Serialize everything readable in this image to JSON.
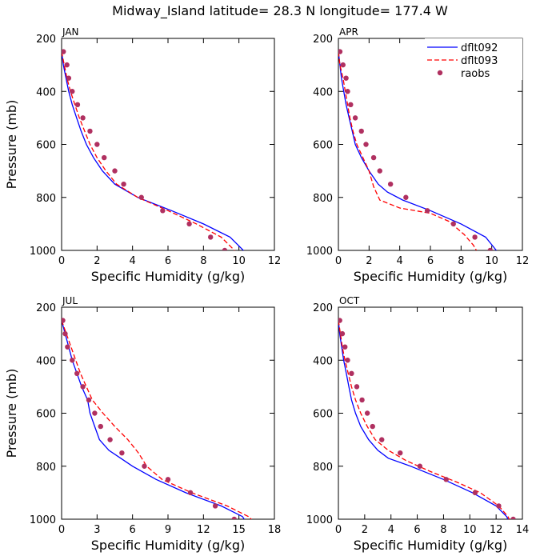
{
  "figure": {
    "title": "Midway_Island  latitude= 28.3 N longitude= 177.4 W"
  },
  "colors": {
    "dflt092": "#0000ff",
    "dflt093": "#ff0000",
    "raobs": "#b03060",
    "axis": "#000000"
  },
  "legend": {
    "placement": "top-right of APR panel",
    "entries": [
      {
        "label": "dflt092",
        "style": "solid-line"
      },
      {
        "label": "dflt093",
        "style": "dashed-line"
      },
      {
        "label": "raobs",
        "style": "dot"
      }
    ]
  },
  "chart_data": [
    {
      "type": "line",
      "panel_label": "JAN",
      "xlabel": "Specific Humidity (g/kg)",
      "ylabel": "Pressure (mb)",
      "xlim": [
        0,
        12
      ],
      "xticks": [
        0,
        2,
        4,
        6,
        8,
        10,
        12
      ],
      "ylim": [
        1000,
        200
      ],
      "yticks": [
        200,
        400,
        600,
        800,
        1000
      ],
      "grid": false,
      "series": [
        {
          "name": "dflt092",
          "style": "solid",
          "points": [
            [
              0.0,
              250
            ],
            [
              0.1,
              300
            ],
            [
              0.25,
              350
            ],
            [
              0.4,
              400
            ],
            [
              0.6,
              450
            ],
            [
              0.85,
              500
            ],
            [
              1.1,
              550
            ],
            [
              1.4,
              600
            ],
            [
              1.8,
              650
            ],
            [
              2.3,
              700
            ],
            [
              3.0,
              750
            ],
            [
              4.3,
              800
            ],
            [
              6.2,
              850
            ],
            [
              8.0,
              900
            ],
            [
              9.5,
              950
            ],
            [
              10.1,
              990
            ],
            [
              10.4,
              1010
            ]
          ]
        },
        {
          "name": "dflt093",
          "style": "dashed",
          "points": [
            [
              0.0,
              250
            ],
            [
              0.15,
              300
            ],
            [
              0.3,
              350
            ],
            [
              0.5,
              400
            ],
            [
              0.75,
              450
            ],
            [
              1.0,
              500
            ],
            [
              1.3,
              550
            ],
            [
              1.6,
              600
            ],
            [
              2.0,
              650
            ],
            [
              2.5,
              700
            ],
            [
              3.1,
              750
            ],
            [
              4.3,
              800
            ],
            [
              6.0,
              850
            ],
            [
              7.6,
              900
            ],
            [
              9.0,
              950
            ],
            [
              9.6,
              990
            ],
            [
              9.9,
              1010
            ]
          ]
        },
        {
          "name": "raobs",
          "style": "dots",
          "points": [
            [
              0.1,
              250
            ],
            [
              0.3,
              300
            ],
            [
              0.4,
              350
            ],
            [
              0.6,
              400
            ],
            [
              0.9,
              450
            ],
            [
              1.2,
              500
            ],
            [
              1.6,
              550
            ],
            [
              2.0,
              600
            ],
            [
              2.4,
              650
            ],
            [
              3.0,
              700
            ],
            [
              3.5,
              750
            ],
            [
              4.5,
              800
            ],
            [
              5.7,
              850
            ],
            [
              7.2,
              900
            ],
            [
              8.4,
              950
            ],
            [
              9.2,
              1000
            ]
          ]
        }
      ]
    },
    {
      "type": "line",
      "panel_label": "APR",
      "xlabel": "Specific Humidity (g/kg)",
      "ylabel": "",
      "xlim": [
        0,
        12
      ],
      "xticks": [
        0,
        2,
        4,
        6,
        8,
        10,
        12
      ],
      "ylim": [
        1000,
        200
      ],
      "yticks": [
        200,
        400,
        600,
        800,
        1000
      ],
      "grid": false,
      "series": [
        {
          "name": "dflt092",
          "style": "solid",
          "points": [
            [
              0.0,
              250
            ],
            [
              0.1,
              300
            ],
            [
              0.2,
              350
            ],
            [
              0.35,
              400
            ],
            [
              0.5,
              450
            ],
            [
              0.7,
              500
            ],
            [
              0.9,
              550
            ],
            [
              1.1,
              600
            ],
            [
              1.5,
              650
            ],
            [
              2.0,
              700
            ],
            [
              2.6,
              750
            ],
            [
              3.2,
              780
            ],
            [
              4.2,
              810
            ],
            [
              6.0,
              850
            ],
            [
              8.0,
              900
            ],
            [
              9.6,
              950
            ],
            [
              10.3,
              1000
            ]
          ]
        },
        {
          "name": "dflt093",
          "style": "dashed",
          "points": [
            [
              0.0,
              250
            ],
            [
              0.1,
              300
            ],
            [
              0.3,
              350
            ],
            [
              0.45,
              400
            ],
            [
              0.6,
              450
            ],
            [
              0.75,
              500
            ],
            [
              0.95,
              550
            ],
            [
              1.2,
              600
            ],
            [
              1.6,
              650
            ],
            [
              2.0,
              700
            ],
            [
              2.3,
              760
            ],
            [
              2.7,
              810
            ],
            [
              4.0,
              840
            ],
            [
              6.0,
              860
            ],
            [
              7.2,
              890
            ],
            [
              8.2,
              940
            ],
            [
              8.8,
              980
            ],
            [
              9.0,
              1000
            ]
          ]
        },
        {
          "name": "raobs",
          "style": "dots",
          "points": [
            [
              0.1,
              250
            ],
            [
              0.3,
              300
            ],
            [
              0.5,
              350
            ],
            [
              0.6,
              400
            ],
            [
              0.8,
              450
            ],
            [
              1.1,
              500
            ],
            [
              1.5,
              550
            ],
            [
              1.8,
              600
            ],
            [
              2.3,
              650
            ],
            [
              2.7,
              700
            ],
            [
              3.4,
              750
            ],
            [
              4.4,
              800
            ],
            [
              5.8,
              850
            ],
            [
              7.5,
              900
            ],
            [
              8.9,
              950
            ],
            [
              9.9,
              1000
            ]
          ]
        }
      ]
    },
    {
      "type": "line",
      "panel_label": "JUL",
      "xlabel": "Specific Humidity (g/kg)",
      "ylabel": "Pressure (mb)",
      "xlim": [
        0,
        18
      ],
      "xticks": [
        0,
        3,
        6,
        9,
        12,
        15,
        18
      ],
      "ylim": [
        1000,
        200
      ],
      "yticks": [
        200,
        400,
        600,
        800,
        1000
      ],
      "grid": false,
      "series": [
        {
          "name": "dflt092",
          "style": "solid",
          "points": [
            [
              0.0,
              250
            ],
            [
              0.3,
              300
            ],
            [
              0.6,
              350
            ],
            [
              0.9,
              400
            ],
            [
              1.3,
              450
            ],
            [
              1.7,
              500
            ],
            [
              2.2,
              550
            ],
            [
              2.4,
              600
            ],
            [
              2.8,
              650
            ],
            [
              3.2,
              700
            ],
            [
              4.0,
              740
            ],
            [
              5.0,
              770
            ],
            [
              6.0,
              800
            ],
            [
              8.0,
              850
            ],
            [
              10.5,
              900
            ],
            [
              13.5,
              950
            ],
            [
              15.3,
              990
            ],
            [
              15.6,
              1010
            ]
          ]
        },
        {
          "name": "dflt093",
          "style": "dashed",
          "points": [
            [
              0.0,
              250
            ],
            [
              0.4,
              300
            ],
            [
              0.8,
              350
            ],
            [
              1.2,
              400
            ],
            [
              1.6,
              450
            ],
            [
              2.1,
              500
            ],
            [
              2.6,
              550
            ],
            [
              3.5,
              600
            ],
            [
              4.5,
              650
            ],
            [
              5.6,
              700
            ],
            [
              6.5,
              750
            ],
            [
              7.2,
              800
            ],
            [
              8.5,
              850
            ],
            [
              11.0,
              900
            ],
            [
              14.0,
              950
            ],
            [
              15.8,
              990
            ],
            [
              16.3,
              1010
            ]
          ]
        },
        {
          "name": "raobs",
          "style": "dots",
          "points": [
            [
              0.1,
              250
            ],
            [
              0.3,
              300
            ],
            [
              0.5,
              350
            ],
            [
              0.9,
              400
            ],
            [
              1.3,
              450
            ],
            [
              1.8,
              500
            ],
            [
              2.3,
              550
            ],
            [
              2.8,
              600
            ],
            [
              3.3,
              650
            ],
            [
              4.1,
              700
            ],
            [
              5.1,
              750
            ],
            [
              7.0,
              800
            ],
            [
              9.0,
              850
            ],
            [
              10.9,
              900
            ],
            [
              13.0,
              950
            ],
            [
              14.6,
              1000
            ]
          ]
        }
      ]
    },
    {
      "type": "line",
      "panel_label": "OCT",
      "xlabel": "Specific Humidity (g/kg)",
      "ylabel": "",
      "xlim": [
        0,
        14
      ],
      "xticks": [
        0,
        2,
        4,
        6,
        8,
        10,
        12,
        14
      ],
      "ylim": [
        1000,
        200
      ],
      "yticks": [
        200,
        400,
        600,
        800,
        1000
      ],
      "grid": false,
      "series": [
        {
          "name": "dflt092",
          "style": "solid",
          "points": [
            [
              0.0,
              250
            ],
            [
              0.1,
              300
            ],
            [
              0.25,
              350
            ],
            [
              0.4,
              400
            ],
            [
              0.6,
              450
            ],
            [
              0.8,
              500
            ],
            [
              1.0,
              550
            ],
            [
              1.3,
              600
            ],
            [
              1.7,
              650
            ],
            [
              2.3,
              700
            ],
            [
              3.0,
              740
            ],
            [
              3.8,
              770
            ],
            [
              5.5,
              800
            ],
            [
              8.0,
              850
            ],
            [
              10.2,
              900
            ],
            [
              12.0,
              950
            ],
            [
              12.8,
              990
            ],
            [
              13.0,
              1010
            ]
          ]
        },
        {
          "name": "dflt093",
          "style": "dashed",
          "points": [
            [
              0.0,
              250
            ],
            [
              0.15,
              300
            ],
            [
              0.3,
              350
            ],
            [
              0.5,
              400
            ],
            [
              0.75,
              450
            ],
            [
              1.0,
              500
            ],
            [
              1.3,
              550
            ],
            [
              1.7,
              600
            ],
            [
              2.2,
              650
            ],
            [
              2.8,
              700
            ],
            [
              3.8,
              740
            ],
            [
              5.2,
              780
            ],
            [
              7.0,
              820
            ],
            [
              9.0,
              860
            ],
            [
              10.8,
              900
            ],
            [
              12.2,
              950
            ],
            [
              12.9,
              990
            ],
            [
              13.1,
              1010
            ]
          ]
        },
        {
          "name": "raobs",
          "style": "dots",
          "points": [
            [
              0.1,
              250
            ],
            [
              0.3,
              300
            ],
            [
              0.5,
              350
            ],
            [
              0.7,
              400
            ],
            [
              1.0,
              450
            ],
            [
              1.4,
              500
            ],
            [
              1.8,
              550
            ],
            [
              2.2,
              600
            ],
            [
              2.6,
              650
            ],
            [
              3.3,
              700
            ],
            [
              4.7,
              750
            ],
            [
              6.2,
              800
            ],
            [
              8.2,
              850
            ],
            [
              10.4,
              900
            ],
            [
              12.2,
              950
            ],
            [
              13.3,
              1000
            ]
          ]
        }
      ]
    }
  ]
}
